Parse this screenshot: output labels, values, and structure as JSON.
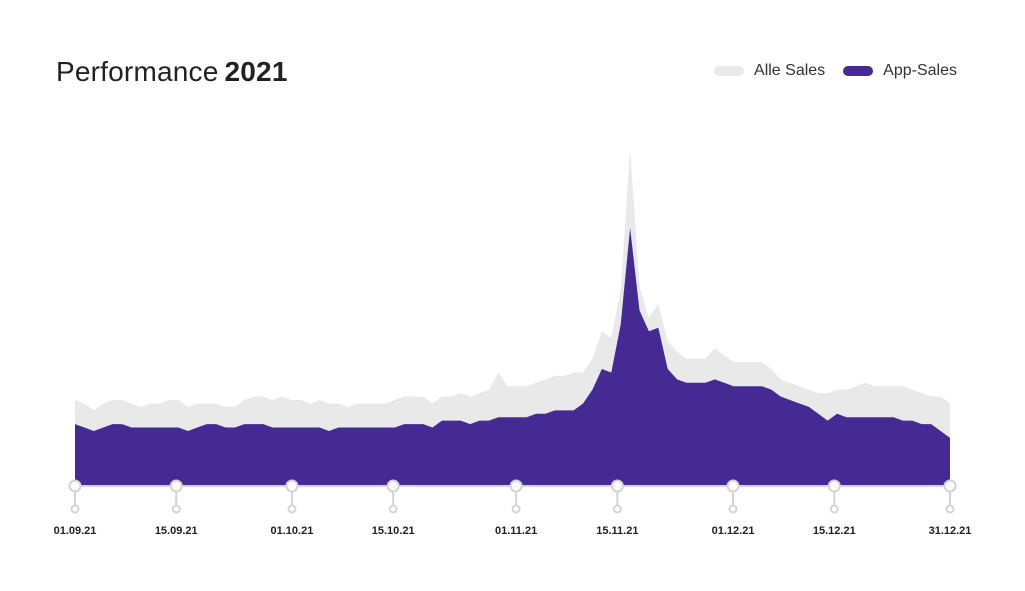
{
  "header": {
    "title_prefix": "Performance",
    "title_year": "2021"
  },
  "legend": {
    "all_sales_label": "Alle Sales",
    "app_sales_label": "App-Sales"
  },
  "colors": {
    "all_sales": "#e9e9e9",
    "app_sales": "#452a93",
    "axis": "#d4d4d4",
    "text": "#222222"
  },
  "chart_data": {
    "type": "area",
    "title": "Performance 2021",
    "xlabel": "",
    "ylabel": "",
    "x_range": [
      "2021-09-01",
      "2021-12-31"
    ],
    "ylim": [
      0,
      100
    ],
    "legend_position": "top-right",
    "grid": false,
    "tick_labels": [
      "01.09.21",
      "15.09.21",
      "01.10.21",
      "15.10.21",
      "01.11.21",
      "15.11.21",
      "01.12.21",
      "15.12.21",
      "31.12.21"
    ],
    "tick_dates": [
      "2021-09-01",
      "2021-09-15",
      "2021-10-01",
      "2021-10-15",
      "2021-11-01",
      "2021-11-15",
      "2021-12-01",
      "2021-12-15",
      "2021-12-31"
    ],
    "series": [
      {
        "name": "Alle Sales",
        "values": [
          25,
          24,
          22,
          24,
          25,
          25,
          24,
          23,
          24,
          24,
          25,
          25,
          23,
          24,
          24,
          24,
          23,
          23,
          25,
          26,
          26,
          25,
          26,
          25,
          25,
          24,
          25,
          24,
          24,
          23,
          24,
          24,
          24,
          24,
          25,
          26,
          26,
          26,
          24,
          26,
          26,
          27,
          26,
          27,
          28,
          33,
          29,
          29,
          29,
          30,
          31,
          32,
          32,
          33,
          33,
          37,
          45,
          43,
          57,
          98,
          58,
          49,
          53,
          42,
          39,
          37,
          37,
          37,
          40,
          38,
          36,
          36,
          36,
          36,
          34,
          31,
          30,
          29,
          28,
          27,
          27,
          28,
          28,
          29,
          30,
          29,
          29,
          29,
          29,
          28,
          27,
          26,
          26,
          24
        ]
      },
      {
        "name": "App-Sales",
        "values": [
          18,
          17,
          16,
          17,
          18,
          18,
          17,
          17,
          17,
          17,
          17,
          17,
          16,
          17,
          18,
          18,
          17,
          17,
          18,
          18,
          18,
          17,
          17,
          17,
          17,
          17,
          17,
          16,
          17,
          17,
          17,
          17,
          17,
          17,
          17,
          18,
          18,
          18,
          17,
          19,
          19,
          19,
          18,
          19,
          19,
          20,
          20,
          20,
          20,
          21,
          21,
          22,
          22,
          22,
          24,
          28,
          34,
          33,
          47,
          75,
          51,
          45,
          46,
          34,
          31,
          30,
          30,
          30,
          31,
          30,
          29,
          29,
          29,
          29,
          28,
          26,
          25,
          24,
          23,
          21,
          19,
          21,
          20,
          20,
          20,
          20,
          20,
          20,
          19,
          19,
          18,
          18,
          16,
          14
        ]
      }
    ]
  }
}
